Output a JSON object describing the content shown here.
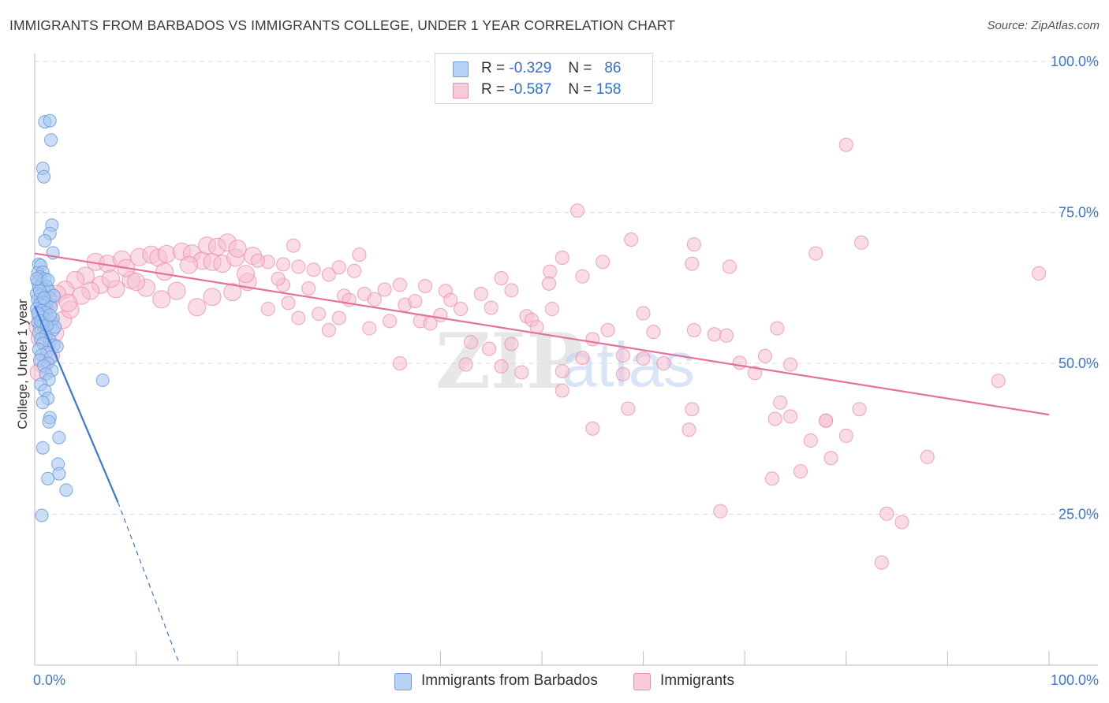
{
  "title": "IMMIGRANTS FROM BARBADOS VS IMMIGRANTS COLLEGE, UNDER 1 YEAR CORRELATION CHART",
  "source": "Source: ZipAtlas.com",
  "watermark": {
    "zip": "ZIP",
    "atlas": "atlas"
  },
  "legend": {
    "series1": {
      "r_label": "R =",
      "r_value": "-0.329",
      "n_label": "N =",
      "n_value": "86"
    },
    "series2": {
      "r_label": "R =",
      "r_value": "-0.587",
      "n_label": "N =",
      "n_value": "158"
    }
  },
  "bottom_legend": {
    "series1": "Immigrants from Barbados",
    "series2": "Immigrants"
  },
  "chart_data": {
    "type": "scatter",
    "xlabel": "",
    "ylabel": "College, Under 1 year",
    "xlim": [
      0,
      100
    ],
    "ylim": [
      0,
      104
    ],
    "x_tick_labels": [
      {
        "value": 0,
        "label": "0.0%"
      },
      {
        "value": 100,
        "label": "100.0%"
      }
    ],
    "y_tick_labels": [
      {
        "value": 25,
        "label": "25.0%"
      },
      {
        "value": 50,
        "label": "50.0%"
      },
      {
        "value": 75,
        "label": "75.0%"
      },
      {
        "value": 100,
        "label": "100.0%"
      }
    ],
    "colors": {
      "blue_fill": "#a9c8f0",
      "blue_stroke": "#6f9fe0",
      "blue_line": "#3a78d6",
      "pink_fill": "#f6bfd0",
      "pink_stroke": "#ec8fae",
      "pink_line": "#e4729a",
      "tick_label": "#3f76cc",
      "grid": "#dddddd"
    },
    "series": [
      {
        "name": "Immigrants from Barbados",
        "trend": {
          "x0": 0.0,
          "y0": 59.5,
          "x1": 8.2,
          "y1": 27.0,
          "dash_to_x": 14.2,
          "dash_to_y": 0.5
        },
        "points": [
          [
            1.0,
            90.0
          ],
          [
            1.5,
            90.2
          ],
          [
            1.6,
            87.0
          ],
          [
            0.8,
            82.3
          ],
          [
            0.9,
            80.9
          ],
          [
            1.7,
            72.9
          ],
          [
            1.5,
            71.5
          ],
          [
            1.0,
            70.3
          ],
          [
            1.8,
            68.3
          ],
          [
            0.4,
            66.4
          ],
          [
            0.6,
            66.2
          ],
          [
            0.3,
            65.0
          ],
          [
            0.8,
            65.1
          ],
          [
            0.5,
            64.3
          ],
          [
            1.0,
            64.0
          ],
          [
            0.3,
            63.5
          ],
          [
            0.7,
            63.1
          ],
          [
            1.2,
            62.7
          ],
          [
            0.4,
            62.5
          ],
          [
            0.9,
            62.3
          ],
          [
            1.4,
            62.0
          ],
          [
            0.2,
            61.5
          ],
          [
            0.6,
            61.3
          ],
          [
            1.0,
            61.0
          ],
          [
            1.5,
            60.8
          ],
          [
            0.3,
            60.5
          ],
          [
            0.8,
            60.2
          ],
          [
            1.2,
            60.0
          ],
          [
            0.5,
            59.8
          ],
          [
            0.9,
            59.5
          ],
          [
            1.6,
            59.3
          ],
          [
            0.2,
            59.0
          ],
          [
            0.7,
            58.7
          ],
          [
            1.1,
            58.4
          ],
          [
            0.4,
            58.0
          ],
          [
            0.8,
            57.6
          ],
          [
            1.3,
            57.2
          ],
          [
            0.3,
            56.8
          ],
          [
            0.9,
            56.6
          ],
          [
            1.4,
            56.5
          ],
          [
            1.7,
            56.8
          ],
          [
            0.5,
            56.0
          ],
          [
            1.0,
            55.7
          ],
          [
            1.8,
            55.5
          ],
          [
            0.4,
            55.0
          ],
          [
            1.1,
            54.6
          ],
          [
            0.6,
            54.0
          ],
          [
            1.5,
            53.8
          ],
          [
            0.8,
            53.3
          ],
          [
            1.9,
            53.0
          ],
          [
            2.2,
            52.8
          ],
          [
            0.4,
            52.3
          ],
          [
            1.2,
            51.8
          ],
          [
            0.7,
            51.4
          ],
          [
            1.6,
            51.0
          ],
          [
            0.5,
            50.5
          ],
          [
            1.3,
            50.0
          ],
          [
            0.9,
            49.6
          ],
          [
            1.7,
            48.8
          ],
          [
            1.1,
            48.2
          ],
          [
            1.4,
            47.3
          ],
          [
            6.7,
            47.2
          ],
          [
            0.6,
            46.5
          ],
          [
            1.0,
            45.5
          ],
          [
            1.3,
            44.2
          ],
          [
            0.8,
            43.5
          ],
          [
            1.5,
            41.0
          ],
          [
            1.4,
            40.3
          ],
          [
            2.4,
            37.7
          ],
          [
            0.8,
            36.0
          ],
          [
            2.3,
            33.3
          ],
          [
            2.4,
            31.7
          ],
          [
            1.3,
            30.9
          ],
          [
            3.1,
            29.0
          ],
          [
            0.7,
            24.8
          ],
          [
            0.3,
            58.3
          ],
          [
            1.8,
            57.4
          ],
          [
            2.0,
            56.0
          ],
          [
            0.6,
            57.0
          ],
          [
            1.2,
            56.3
          ],
          [
            0.2,
            64.0
          ],
          [
            1.9,
            61.2
          ],
          [
            0.5,
            62.0
          ],
          [
            1.3,
            63.8
          ],
          [
            0.9,
            60.8
          ],
          [
            1.5,
            58.0
          ]
        ]
      },
      {
        "name": "Immigrants",
        "trend": {
          "x0": 0.0,
          "y0": 68.2,
          "x1": 100.0,
          "y1": 41.5
        },
        "points": [
          [
            80.0,
            86.2
          ],
          [
            53.5,
            75.3
          ],
          [
            58.8,
            70.5
          ],
          [
            81.5,
            70.0
          ],
          [
            65.0,
            69.7
          ],
          [
            77.0,
            68.2
          ],
          [
            32.0,
            68.0
          ],
          [
            52.0,
            67.5
          ],
          [
            56.0,
            66.8
          ],
          [
            64.8,
            66.5
          ],
          [
            68.5,
            66.0
          ],
          [
            50.8,
            65.2
          ],
          [
            99.0,
            64.9
          ],
          [
            54.0,
            64.4
          ],
          [
            46.0,
            64.1
          ],
          [
            50.7,
            63.2
          ],
          [
            36.0,
            63.0
          ],
          [
            40.5,
            62.0
          ],
          [
            32.5,
            61.5
          ],
          [
            36.5,
            59.7
          ],
          [
            45.0,
            59.2
          ],
          [
            51.0,
            59.0
          ],
          [
            60.0,
            58.3
          ],
          [
            48.5,
            57.8
          ],
          [
            49.0,
            57.2
          ],
          [
            38.0,
            57.0
          ],
          [
            39.0,
            56.6
          ],
          [
            56.5,
            55.5
          ],
          [
            61.0,
            55.2
          ],
          [
            65.0,
            55.5
          ],
          [
            67.0,
            54.8
          ],
          [
            73.2,
            55.8
          ],
          [
            68.2,
            54.6
          ],
          [
            55.0,
            54.0
          ],
          [
            43.0,
            53.5
          ],
          [
            47.0,
            53.2
          ],
          [
            44.8,
            52.4
          ],
          [
            58.0,
            51.3
          ],
          [
            72.0,
            51.2
          ],
          [
            54.0,
            50.9
          ],
          [
            60.0,
            50.8
          ],
          [
            62.0,
            50.0
          ],
          [
            69.5,
            50.1
          ],
          [
            74.5,
            49.8
          ],
          [
            42.5,
            49.8
          ],
          [
            46.0,
            49.5
          ],
          [
            48.0,
            48.5
          ],
          [
            52.0,
            48.7
          ],
          [
            58.0,
            48.2
          ],
          [
            71.0,
            48.4
          ],
          [
            36.0,
            50.0
          ],
          [
            95.0,
            47.1
          ],
          [
            52.0,
            45.5
          ],
          [
            73.5,
            43.5
          ],
          [
            58.5,
            42.5
          ],
          [
            64.8,
            42.4
          ],
          [
            81.3,
            42.4
          ],
          [
            74.5,
            41.2
          ],
          [
            64.5,
            39.0
          ],
          [
            55.0,
            39.2
          ],
          [
            80.0,
            38.0
          ],
          [
            76.5,
            37.2
          ],
          [
            78.0,
            40.5
          ],
          [
            75.5,
            32.1
          ],
          [
            72.7,
            30.9
          ],
          [
            78.5,
            34.3
          ],
          [
            88.0,
            34.5
          ],
          [
            84.0,
            25.1
          ],
          [
            85.5,
            23.7
          ],
          [
            67.6,
            25.5
          ],
          [
            83.5,
            17.0
          ],
          [
            78.0,
            40.5
          ],
          [
            73.0,
            40.8
          ],
          [
            23.0,
            59.0
          ],
          [
            25.0,
            60.0
          ],
          [
            28.0,
            58.2
          ],
          [
            30.0,
            57.5
          ],
          [
            33.0,
            55.8
          ],
          [
            35.0,
            57.0
          ],
          [
            37.5,
            60.3
          ],
          [
            40.0,
            58.0
          ],
          [
            41.0,
            60.5
          ],
          [
            44.0,
            61.5
          ],
          [
            47.0,
            62.1
          ],
          [
            49.5,
            56.0
          ],
          [
            24.5,
            63.0
          ],
          [
            27.0,
            62.4
          ],
          [
            30.5,
            61.2
          ],
          [
            33.5,
            60.6
          ],
          [
            26.0,
            57.5
          ],
          [
            29.0,
            55.5
          ],
          [
            31.0,
            60.5
          ],
          [
            34.5,
            62.2
          ],
          [
            38.5,
            62.8
          ],
          [
            42.0,
            59.0
          ],
          [
            21.0,
            63.5
          ],
          [
            19.5,
            61.8
          ],
          [
            17.5,
            61.0
          ],
          [
            16.0,
            59.3
          ],
          [
            14.0,
            62.0
          ],
          [
            12.5,
            60.6
          ],
          [
            11.0,
            62.5
          ],
          [
            9.5,
            63.8
          ],
          [
            8.0,
            62.3
          ],
          [
            6.5,
            63.0
          ],
          [
            5.0,
            64.5
          ],
          [
            4.0,
            63.8
          ],
          [
            3.0,
            62.2
          ],
          [
            2.2,
            61.5
          ],
          [
            1.5,
            60.3
          ],
          [
            1.0,
            59.0
          ],
          [
            0.6,
            57.5
          ],
          [
            0.3,
            56.0
          ],
          [
            0.5,
            54.2
          ],
          [
            1.2,
            53.0
          ],
          [
            2.0,
            55.0
          ],
          [
            0.8,
            49.8
          ],
          [
            0.4,
            48.5
          ],
          [
            1.6,
            51.4
          ],
          [
            2.8,
            57.2
          ],
          [
            3.5,
            58.9
          ],
          [
            5.5,
            62.0
          ],
          [
            6.0,
            66.8
          ],
          [
            7.2,
            66.5
          ],
          [
            8.6,
            67.2
          ],
          [
            9.0,
            65.8
          ],
          [
            10.3,
            67.6
          ],
          [
            11.5,
            68.0
          ],
          [
            12.2,
            67.5
          ],
          [
            13.0,
            68.1
          ],
          [
            14.5,
            68.5
          ],
          [
            15.5,
            68.2
          ],
          [
            16.5,
            67.0
          ],
          [
            17.5,
            66.8
          ],
          [
            18.5,
            66.5
          ],
          [
            19.8,
            67.5
          ],
          [
            21.5,
            67.8
          ],
          [
            23.0,
            66.8
          ],
          [
            24.5,
            66.4
          ],
          [
            26.0,
            66.0
          ],
          [
            27.5,
            65.5
          ],
          [
            29.0,
            64.7
          ],
          [
            30.0,
            65.9
          ],
          [
            31.5,
            65.3
          ],
          [
            17.0,
            69.5
          ],
          [
            18.0,
            69.3
          ],
          [
            19.0,
            70.0
          ],
          [
            20.0,
            69.0
          ],
          [
            25.5,
            69.5
          ],
          [
            22.0,
            67.0
          ],
          [
            20.8,
            64.8
          ],
          [
            24.0,
            64.0
          ],
          [
            7.5,
            64.0
          ],
          [
            10.0,
            63.5
          ],
          [
            12.8,
            65.2
          ],
          [
            4.6,
            61.2
          ],
          [
            3.3,
            60.0
          ],
          [
            15.2,
            66.3
          ]
        ]
      }
    ]
  }
}
